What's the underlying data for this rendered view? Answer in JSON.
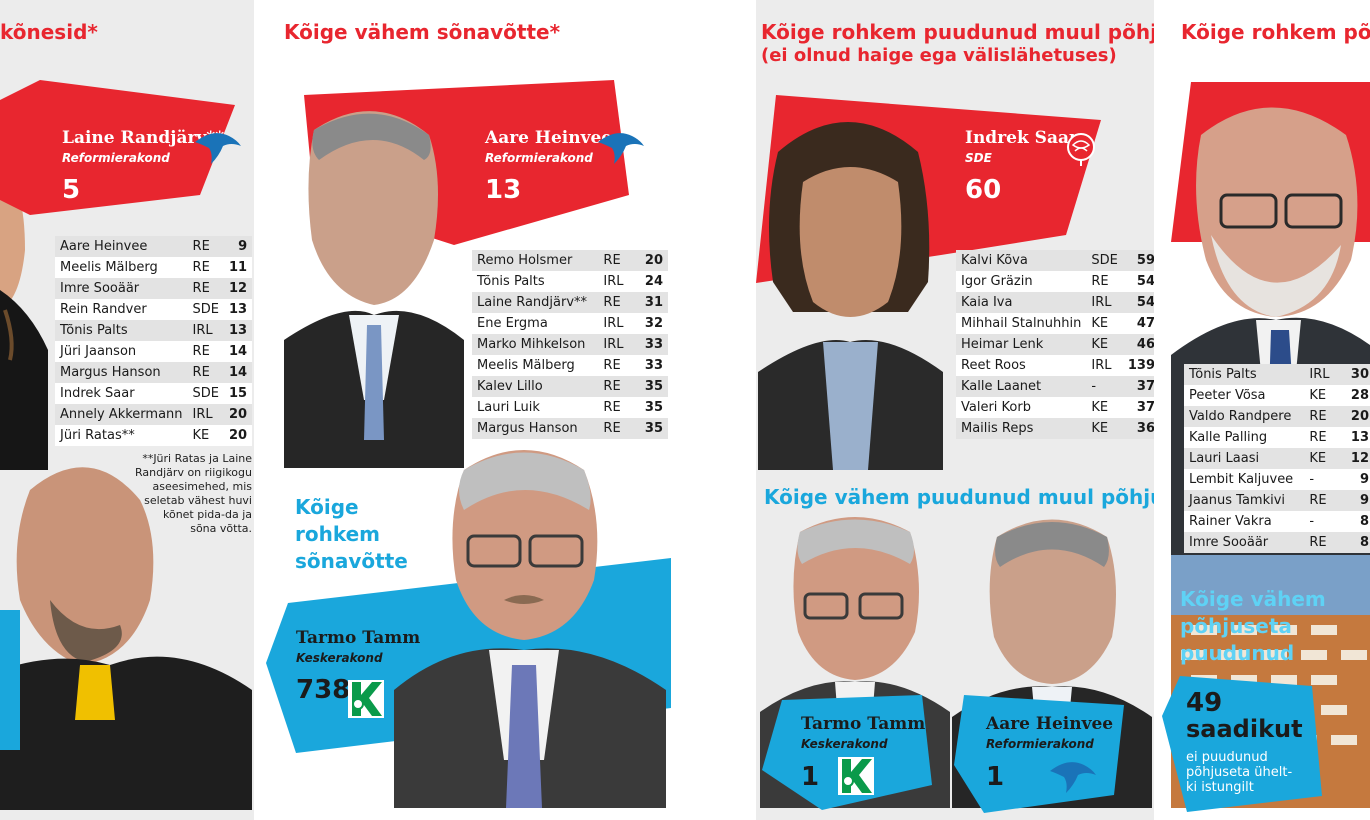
{
  "panel1": {
    "heading": "kõnesid*",
    "person": {
      "name": "Laine Randjärv**",
      "party": "Reformierakond",
      "value": "5"
    },
    "rows": [
      {
        "name": "Aare Heinvee",
        "party": "RE",
        "value": "9"
      },
      {
        "name": "Meelis Mälberg",
        "party": "RE",
        "value": "11"
      },
      {
        "name": "Imre Sooäär",
        "party": "RE",
        "value": "12"
      },
      {
        "name": "Rein Randver",
        "party": "SDE",
        "value": "13"
      },
      {
        "name": "Tõnis Palts",
        "party": "IRL",
        "value": "13"
      },
      {
        "name": "Jüri Jaanson",
        "party": "RE",
        "value": "14"
      },
      {
        "name": "Margus Hanson",
        "party": "RE",
        "value": "14"
      },
      {
        "name": "Indrek Saar",
        "party": "SDE",
        "value": "15"
      },
      {
        "name": "Annely Akkermann",
        "party": "IRL",
        "value": "20"
      },
      {
        "name": "Jüri Ratas**",
        "party": "KE",
        "value": "20"
      }
    ],
    "note": "**Jüri Ratas ja Laine Randjärv on riigikogu aseesimehed, mis seletab vähest huvi kõnet pida-da ja sõna võtta."
  },
  "panel2": {
    "heading": "Kõige vähem sõnavõtte*",
    "person": {
      "name": "Aare Heinvee",
      "party": "Reformierakond",
      "value": "13"
    },
    "rows": [
      {
        "name": "Remo Holsmer",
        "party": "RE",
        "value": "20"
      },
      {
        "name": "Tõnis Palts",
        "party": "IRL",
        "value": "24"
      },
      {
        "name": "Laine Randjärv**",
        "party": "RE",
        "value": "31"
      },
      {
        "name": "Ene Ergma",
        "party": "IRL",
        "value": "32"
      },
      {
        "name": "Marko Mihkelson",
        "party": "IRL",
        "value": "33"
      },
      {
        "name": "Meelis Mälberg",
        "party": "RE",
        "value": "33"
      },
      {
        "name": "Kalev Lillo",
        "party": "RE",
        "value": "35"
      },
      {
        "name": "Lauri Luik",
        "party": "RE",
        "value": "35"
      },
      {
        "name": "Margus Hanson",
        "party": "RE",
        "value": "35"
      }
    ],
    "heading2_lines": [
      "Kõige",
      "rohkem",
      "sõnavõtte"
    ],
    "person2": {
      "name": "Tarmo Tamm",
      "party": "Keskerakond",
      "value": "738"
    }
  },
  "panel3": {
    "heading": "Kõige rohkem puudunud muul põhjusel",
    "subheading": "(ei olnud haige ega välislähetuses)",
    "person": {
      "name": "Indrek Saar",
      "party": "SDE",
      "value": "60"
    },
    "rows": [
      {
        "name": "Kalvi Kõva",
        "party": "SDE",
        "value": "59"
      },
      {
        "name": "Igor Gräzin",
        "party": "RE",
        "value": "54"
      },
      {
        "name": "Kaia Iva",
        "party": "IRL",
        "value": "54"
      },
      {
        "name": "Mihhail Stalnuhhin",
        "party": "KE",
        "value": "47"
      },
      {
        "name": "Heimar Lenk",
        "party": "KE",
        "value": "46"
      },
      {
        "name": "Reet Roos",
        "party": "IRL",
        "value": "139"
      },
      {
        "name": "Kalle Laanet",
        "party": "-",
        "value": "37"
      },
      {
        "name": "Valeri Korb",
        "party": "KE",
        "value": "37"
      },
      {
        "name": "Mailis Reps",
        "party": "KE",
        "value": "36"
      }
    ],
    "heading2": "Kõige vähem puudunud muul põhjusel",
    "personA": {
      "name": "Tarmo Tamm",
      "party": "Keskerakond",
      "value": "1"
    },
    "personB": {
      "name": "Aare Heinvee",
      "party": "Reformierakond",
      "value": "1"
    }
  },
  "panel4": {
    "heading": "Kõige rohkem põhju",
    "rows": [
      {
        "name": "Tõnis Palts",
        "party": "IRL",
        "value": "30"
      },
      {
        "name": "Peeter Võsa",
        "party": "KE",
        "value": "28"
      },
      {
        "name": "Valdo Randpere",
        "party": "RE",
        "value": "20"
      },
      {
        "name": "Kalle Palling",
        "party": "RE",
        "value": "13"
      },
      {
        "name": "Lauri Laasi",
        "party": "KE",
        "value": "12"
      },
      {
        "name": "Lembit Kaljuvee",
        "party": "-",
        "value": "9"
      },
      {
        "name": "Jaanus Tamkivi",
        "party": "RE",
        "value": "9"
      },
      {
        "name": "Rainer Vakra",
        "party": "-",
        "value": "8"
      },
      {
        "name": "Imre Sooäär",
        "party": "RE",
        "value": "8"
      }
    ],
    "heading2_lines": [
      "Kõige vähem",
      "põhjuseta",
      "puudunud"
    ],
    "count": "49",
    "count_unit": "saadikut",
    "count_desc": "ei puudunud põhjuseta ühelt-ki istungilt"
  },
  "colors": {
    "red": "#e8262f",
    "blue": "#1aa7dc",
    "grey_bg": "#ececec"
  },
  "icons": [
    "reform-bird-icon",
    "sde-rose-icon",
    "keskerakond-k-icon"
  ]
}
